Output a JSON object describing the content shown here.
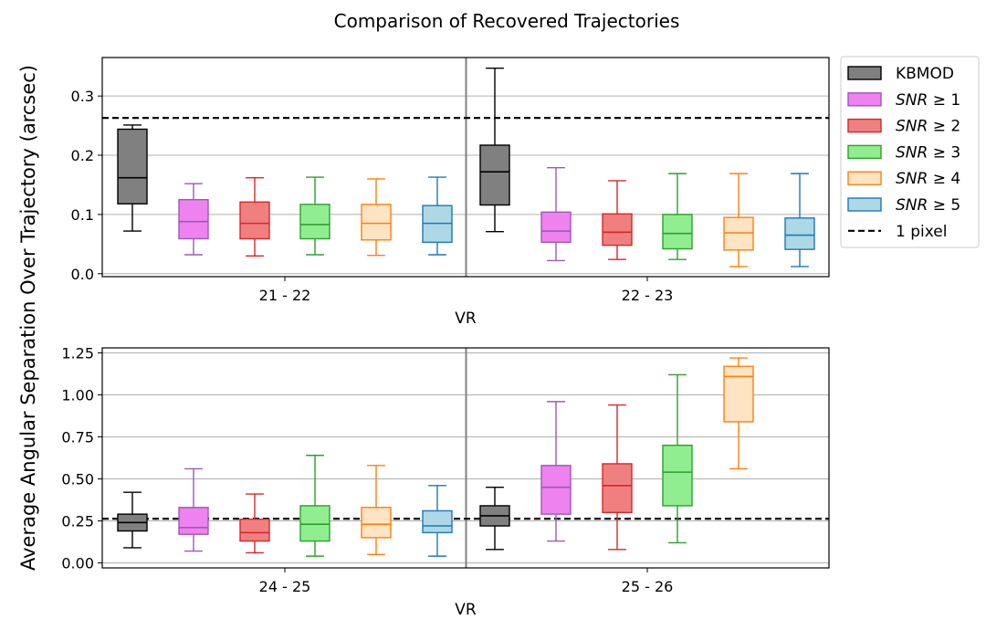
{
  "chart_data": {
    "type": "box",
    "title": "Comparison of Recovered Trajectories",
    "ylabel": "Average Angular Separation Over Trajectory (arcsec)",
    "xlabel": "VR",
    "reference_line": {
      "label": "1 pixel",
      "value": 0.263
    },
    "series": [
      {
        "name": "KBMOD",
        "legend_prefix": "KBMOD",
        "legend_suffix": "",
        "fill": "#808080",
        "edge": "#000000"
      },
      {
        "name": "SNR ≥ 1",
        "legend_prefix": "SNR",
        "legend_suffix": " ≥ 1",
        "fill": "#ee82ee",
        "edge": "#9b59b6"
      },
      {
        "name": "SNR ≥ 2",
        "legend_prefix": "SNR",
        "legend_suffix": " ≥ 2",
        "fill": "#f08080",
        "edge": "#d62728"
      },
      {
        "name": "SNR ≥ 3",
        "legend_prefix": "SNR",
        "legend_suffix": " ≥ 3",
        "fill": "#90ee90",
        "edge": "#2ca02c"
      },
      {
        "name": "SNR ≥ 4",
        "legend_prefix": "SNR",
        "legend_suffix": " ≥ 4",
        "fill": "#ffe4c4",
        "edge": "#ff7f0e"
      },
      {
        "name": "SNR ≥ 5",
        "legend_prefix": "SNR",
        "legend_suffix": " ≥ 5",
        "fill": "#add8e6",
        "edge": "#1f77b4"
      }
    ],
    "panels": [
      {
        "ylim": [
          -0.005,
          0.365
        ],
        "yticks": [
          0.0,
          0.1,
          0.2,
          0.3
        ],
        "ytick_labels": [
          "0.0",
          "0.1",
          "0.2",
          "0.3"
        ],
        "categories": [
          "21 - 22",
          "22 - 23"
        ],
        "groups": [
          [
            {
              "min": 0.072,
              "q1": 0.118,
              "median": 0.162,
              "q3": 0.244,
              "max": 0.251
            },
            {
              "min": 0.032,
              "q1": 0.059,
              "median": 0.088,
              "q3": 0.125,
              "max": 0.152
            },
            {
              "min": 0.03,
              "q1": 0.059,
              "median": 0.085,
              "q3": 0.121,
              "max": 0.162
            },
            {
              "min": 0.032,
              "q1": 0.059,
              "median": 0.083,
              "q3": 0.117,
              "max": 0.163
            },
            {
              "min": 0.031,
              "q1": 0.057,
              "median": 0.085,
              "q3": 0.117,
              "max": 0.16
            },
            {
              "min": 0.032,
              "q1": 0.053,
              "median": 0.085,
              "q3": 0.115,
              "max": 0.163
            }
          ],
          [
            {
              "min": 0.071,
              "q1": 0.116,
              "median": 0.172,
              "q3": 0.217,
              "max": 0.347
            },
            {
              "min": 0.022,
              "q1": 0.053,
              "median": 0.072,
              "q3": 0.104,
              "max": 0.179
            },
            {
              "min": 0.024,
              "q1": 0.048,
              "median": 0.07,
              "q3": 0.101,
              "max": 0.157
            },
            {
              "min": 0.024,
              "q1": 0.042,
              "median": 0.068,
              "q3": 0.1,
              "max": 0.169
            },
            {
              "min": 0.012,
              "q1": 0.04,
              "median": 0.069,
              "q3": 0.095,
              "max": 0.169
            },
            {
              "min": 0.012,
              "q1": 0.041,
              "median": 0.065,
              "q3": 0.094,
              "max": 0.169
            }
          ]
        ]
      },
      {
        "ylim": [
          -0.03,
          1.28
        ],
        "yticks": [
          0.0,
          0.25,
          0.5,
          0.75,
          1.0,
          1.25
        ],
        "ytick_labels": [
          "0.00",
          "0.25",
          "0.50",
          "0.75",
          "1.00",
          "1.25"
        ],
        "categories": [
          "24 - 25",
          "25 - 26"
        ],
        "groups": [
          [
            {
              "min": 0.09,
              "q1": 0.19,
              "median": 0.24,
              "q3": 0.29,
              "max": 0.42
            },
            {
              "min": 0.07,
              "q1": 0.17,
              "median": 0.21,
              "q3": 0.33,
              "max": 0.56
            },
            {
              "min": 0.06,
              "q1": 0.13,
              "median": 0.18,
              "q3": 0.26,
              "max": 0.41
            },
            {
              "min": 0.04,
              "q1": 0.13,
              "median": 0.23,
              "q3": 0.34,
              "max": 0.64
            },
            {
              "min": 0.05,
              "q1": 0.15,
              "median": 0.23,
              "q3": 0.33,
              "max": 0.58
            },
            {
              "min": 0.04,
              "q1": 0.18,
              "median": 0.22,
              "q3": 0.31,
              "max": 0.46
            }
          ],
          [
            {
              "min": 0.08,
              "q1": 0.22,
              "median": 0.28,
              "q3": 0.34,
              "max": 0.45
            },
            {
              "min": 0.13,
              "q1": 0.29,
              "median": 0.45,
              "q3": 0.58,
              "max": 0.96
            },
            {
              "min": 0.08,
              "q1": 0.3,
              "median": 0.46,
              "q3": 0.59,
              "max": 0.94
            },
            {
              "min": 0.12,
              "q1": 0.34,
              "median": 0.54,
              "q3": 0.7,
              "max": 1.12
            },
            {
              "min": 0.56,
              "q1": 0.84,
              "median": 1.11,
              "q3": 1.17,
              "max": 1.22
            },
            null
          ]
        ]
      }
    ]
  }
}
